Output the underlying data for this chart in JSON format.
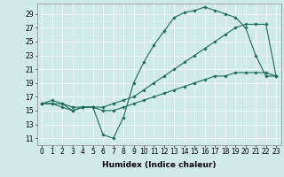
{
  "xlabel": "Humidex (Indice chaleur)",
  "bg_color": "#d0eaea",
  "grid_color": "#b0d0d0",
  "line_color": "#1a6b5a",
  "ylim": [
    10,
    30.5
  ],
  "xlim": [
    -0.5,
    23.5
  ],
  "yticks": [
    11,
    13,
    15,
    17,
    19,
    21,
    23,
    25,
    27,
    29
  ],
  "xticks": [
    0,
    1,
    2,
    3,
    4,
    5,
    6,
    7,
    8,
    9,
    10,
    11,
    12,
    13,
    14,
    15,
    16,
    17,
    18,
    19,
    20,
    21,
    22,
    23
  ],
  "line1_x": [
    0,
    1,
    2,
    3,
    4,
    5,
    6,
    7,
    8,
    9,
    10,
    11,
    12,
    13,
    14,
    15,
    16,
    17,
    18,
    19,
    20,
    21,
    22,
    23
  ],
  "line1_y": [
    16.0,
    16.5,
    16.0,
    15.0,
    15.5,
    15.5,
    11.5,
    11.0,
    14.0,
    19.0,
    22.0,
    24.5,
    26.5,
    28.5,
    29.2,
    29.5,
    30.0,
    29.5,
    29.0,
    28.5,
    27.0,
    23.0,
    20.0,
    20.0
  ],
  "line2_x": [
    0,
    1,
    2,
    3,
    4,
    5,
    6,
    7,
    8,
    9,
    10,
    11,
    12,
    13,
    14,
    15,
    16,
    17,
    18,
    19,
    20,
    21,
    22,
    23
  ],
  "line2_y": [
    16.0,
    16.0,
    15.5,
    15.0,
    15.5,
    15.5,
    15.5,
    16.0,
    16.5,
    17.0,
    18.0,
    19.0,
    20.0,
    21.0,
    22.0,
    23.0,
    24.0,
    25.0,
    26.0,
    27.0,
    27.5,
    27.5,
    27.5,
    20.0
  ],
  "line3_x": [
    0,
    1,
    2,
    3,
    4,
    5,
    6,
    7,
    8,
    9,
    10,
    11,
    12,
    13,
    14,
    15,
    16,
    17,
    18,
    19,
    20,
    21,
    22,
    23
  ],
  "line3_y": [
    16.0,
    16.0,
    16.0,
    15.5,
    15.5,
    15.5,
    15.0,
    15.0,
    15.5,
    16.0,
    16.5,
    17.0,
    17.5,
    18.0,
    18.5,
    19.0,
    19.5,
    20.0,
    20.0,
    20.5,
    20.5,
    20.5,
    20.5,
    20.0
  ],
  "tick_fontsize": 5.5,
  "xlabel_fontsize": 6.5
}
